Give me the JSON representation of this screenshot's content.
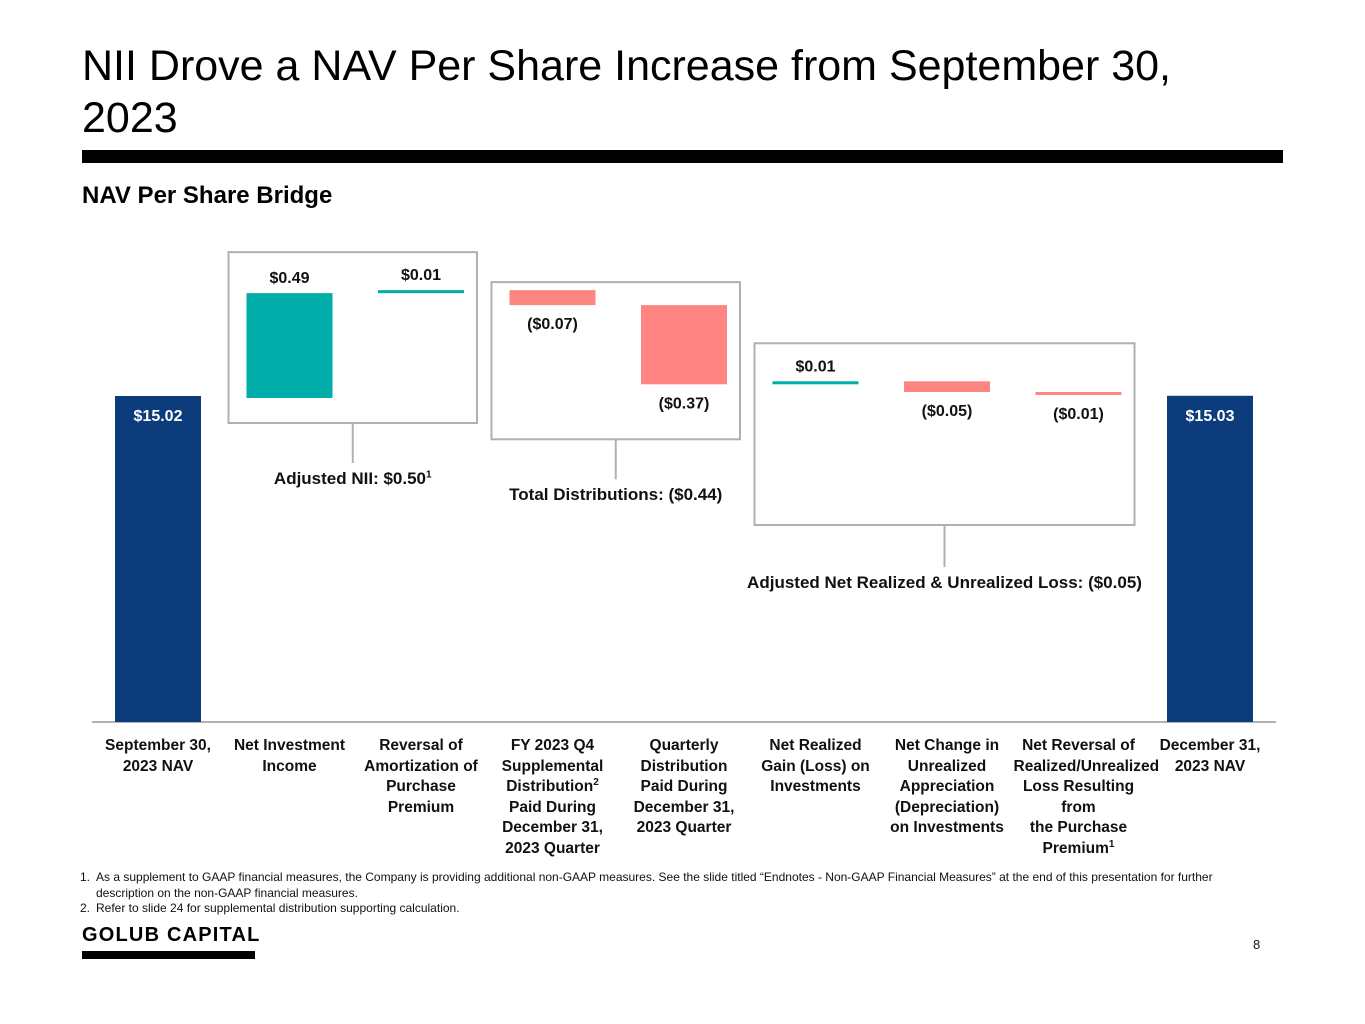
{
  "slide": {
    "title": "NII Drove a NAV Per Share Increase from September 30, 2023",
    "subtitle": "NAV Per Share Bridge",
    "page_number": "8",
    "logo_text": "GOLUB CAPITAL"
  },
  "colors": {
    "nav_bar": "#0c3c7c",
    "positive": "#00ada8",
    "negative": "#ff8583",
    "box_border": "#b0b0b0",
    "axis": "#999999"
  },
  "chart_data": {
    "type": "bar",
    "subtype": "waterfall",
    "title": "NAV Per Share Bridge",
    "unit": "$ per share",
    "categories": [
      "September 30, 2023 NAV",
      "Net Investment Income",
      "Reversal of Amortization of Purchase Premium",
      "FY 2023 Q4 Supplemental Distribution² Paid During December 31, 2023 Quarter",
      "Quarterly Distribution Paid During December 31, 2023 Quarter",
      "Net Realized Gain (Loss) on Investments",
      "Net Change in Unrealized Appreciation (Depreciation) on Investments",
      "Net Reversal of Realized/Unrealized Loss Resulting from the Purchase Premium¹",
      "December 31, 2023 NAV"
    ],
    "category_labels": [
      {
        "text": "September 30,\n2023 NAV"
      },
      {
        "text": "Net Investment\nIncome"
      },
      {
        "text": "Reversal of\nAmortization of\nPurchase\nPremium"
      },
      {
        "text": "FY 2023 Q4\nSupplemental\nDistribution",
        "sup": "2",
        "after": "\nPaid During\nDecember 31,\n2023 Quarter"
      },
      {
        "text": "Quarterly\nDistribution\nPaid During\nDecember 31,\n2023 Quarter"
      },
      {
        "text": "Net Realized\nGain (Loss) on\nInvestments"
      },
      {
        "text": "Net Change in\nUnrealized\nAppreciation\n(Depreciation)\non Investments"
      },
      {
        "text": "Net Reversal of\nRealized/Unrealized\nLoss Resulting from\nthe Purchase\nPremium",
        "sup": "1",
        "after": ""
      },
      {
        "text": "December 31,\n2023 NAV"
      }
    ],
    "steps": [
      {
        "kind": "total",
        "value": 15.02,
        "label": "$15.02"
      },
      {
        "kind": "delta",
        "value": 0.49,
        "label": "$0.49"
      },
      {
        "kind": "delta",
        "value": 0.01,
        "label": "$0.01"
      },
      {
        "kind": "delta",
        "value": -0.07,
        "label": "($0.07)"
      },
      {
        "kind": "delta",
        "value": -0.37,
        "label": "($0.37)"
      },
      {
        "kind": "delta",
        "value": 0.01,
        "label": "$0.01"
      },
      {
        "kind": "delta",
        "value": -0.05,
        "label": "($0.05)"
      },
      {
        "kind": "delta",
        "value": -0.01,
        "label": "($0.01)"
      },
      {
        "kind": "total",
        "value": 15.03,
        "label": "$15.03"
      }
    ],
    "groups": [
      {
        "label": "Adjusted NII: $0.50",
        "sup": "1",
        "from": 1,
        "to": 2
      },
      {
        "label": "Total Distributions: ($0.44)",
        "sup": "",
        "from": 3,
        "to": 4
      },
      {
        "label": "Adjusted Net Realized & Unrealized Loss: ($0.05)",
        "sup": "",
        "from": 5,
        "to": 7
      }
    ]
  },
  "footnotes": [
    {
      "num": "1.",
      "text": "As a supplement to GAAP financial measures, the Company is providing additional non-GAAP measures. See the slide titled “Endnotes - Non-GAAP Financial Measures” at the end of this presentation for further description on the non-GAAP financial measures."
    },
    {
      "num": "2.",
      "text": "Refer to slide 24 for supplemental distribution supporting calculation."
    }
  ]
}
